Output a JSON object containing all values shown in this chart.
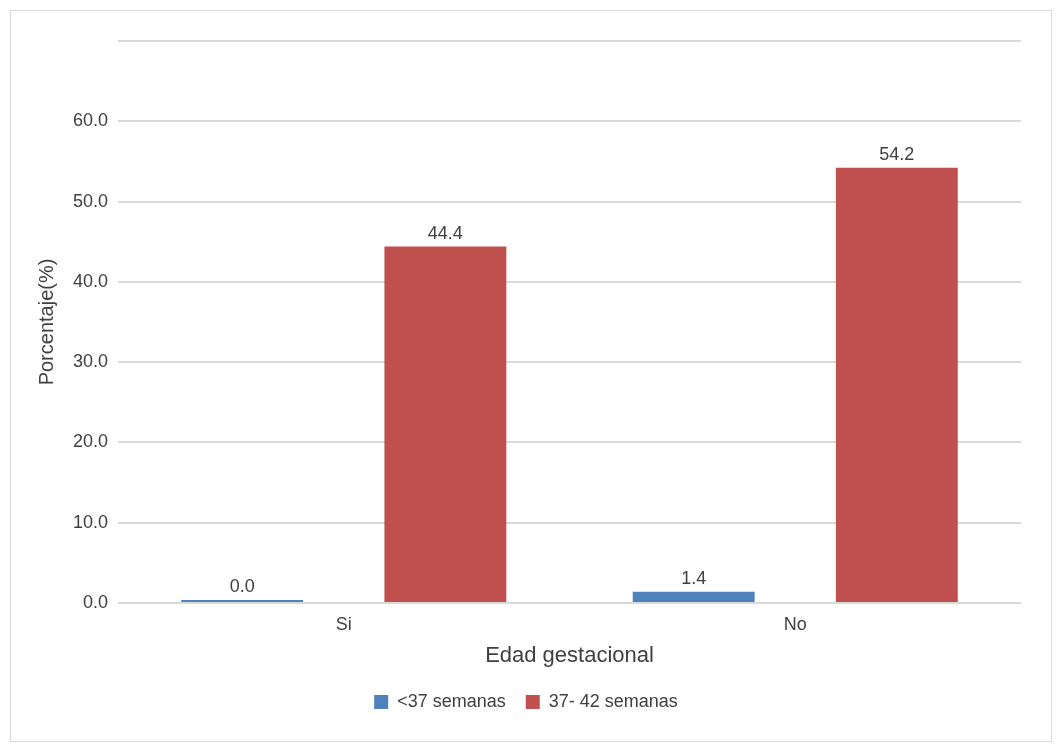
{
  "chart_data": {
    "type": "bar",
    "xlabel": "Edad gestacional",
    "ylabel": "Porcentaje(%)",
    "categories": [
      "Si",
      "No"
    ],
    "series": [
      {
        "name": "<37 semanas",
        "color": "#4f81bd",
        "values": [
          0.0,
          1.4
        ],
        "value_labels": [
          "0.0",
          "1.4"
        ]
      },
      {
        "name": "37- 42 semanas",
        "color": "#c0504d",
        "values": [
          44.4,
          54.2
        ],
        "value_labels": [
          "44.4",
          "54.2"
        ]
      }
    ],
    "ylim": [
      0,
      70
    ],
    "yticks": [
      {
        "value": 0,
        "label": "0.0"
      },
      {
        "value": 10,
        "label": "10.0"
      },
      {
        "value": 20,
        "label": "20.0"
      },
      {
        "value": 30,
        "label": "30.0"
      },
      {
        "value": 40,
        "label": "40.0"
      },
      {
        "value": 50,
        "label": "50.0"
      },
      {
        "value": 60,
        "label": "60.0"
      },
      {
        "value": 70,
        "label": null
      }
    ],
    "grid": "y",
    "legend": "bottom"
  }
}
